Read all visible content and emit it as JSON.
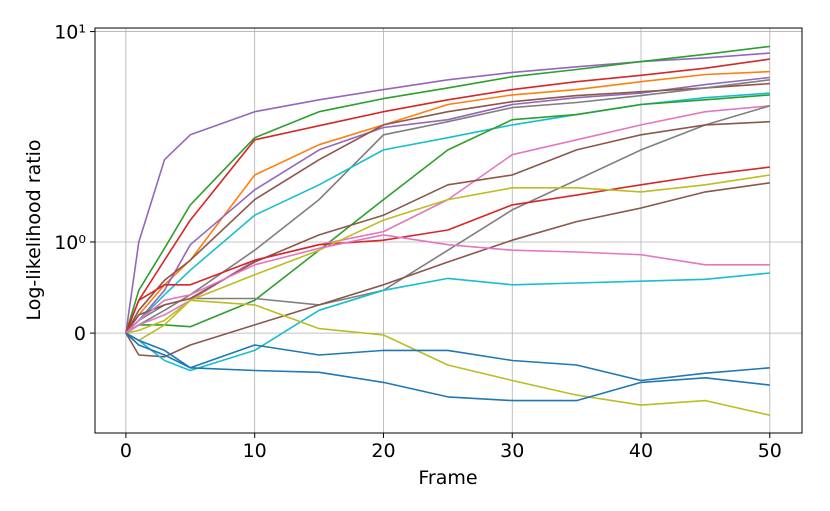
{
  "chart_data": {
    "type": "line",
    "x_label": "Frame",
    "y_label": "Log-likelihood ratio",
    "xlim": [
      -2.4,
      52.5
    ],
    "xticks": [
      0,
      10,
      20,
      30,
      40,
      50
    ],
    "ylim": [
      -1.1,
      10.4
    ],
    "yscale": "symlog",
    "linthresh": 1,
    "yticks": [
      0,
      {
        "value": 1,
        "label": "10⁰"
      },
      {
        "value": 10,
        "label": "10¹"
      }
    ],
    "grid": true,
    "x": [
      0,
      1,
      3,
      5,
      10,
      15,
      20,
      25,
      30,
      35,
      40,
      45,
      50
    ],
    "series": [
      {
        "color": "#9467bd",
        "values": [
          0,
          1.0,
          2.46,
          3.23,
          4.16,
          4.74,
          5.3,
          5.9,
          6.4,
          6.8,
          7.2,
          7.5,
          7.9
        ]
      },
      {
        "color": "#2ca02c",
        "values": [
          0,
          0.47,
          0.93,
          1.5,
          3.13,
          4.16,
          4.8,
          5.4,
          6.1,
          6.6,
          7.2,
          7.8,
          8.5
        ]
      },
      {
        "color": "#d62728",
        "values": [
          0,
          0.36,
          0.8,
          1.27,
          3.06,
          3.57,
          4.16,
          4.74,
          5.3,
          5.78,
          6.2,
          6.7,
          7.4
        ]
      },
      {
        "color": "#ff7f0e",
        "values": [
          0,
          0.2,
          0.53,
          0.8,
          2.08,
          2.9,
          3.6,
          4.5,
          5.0,
          5.3,
          5.78,
          6.25,
          6.45
        ]
      },
      {
        "color": "#9467bd",
        "values": [
          0,
          0.14,
          0.47,
          0.97,
          1.77,
          2.74,
          3.5,
          3.81,
          4.5,
          4.85,
          5.1,
          5.6,
          6.05
        ]
      },
      {
        "color": "#8c564b",
        "values": [
          0,
          0.25,
          0.58,
          0.8,
          1.59,
          2.46,
          3.6,
          4.16,
          4.64,
          4.96,
          5.18,
          5.4,
          5.66
        ]
      },
      {
        "color": "#7f7f7f",
        "values": [
          0,
          0.09,
          0.25,
          0.42,
          0.91,
          1.59,
          3.23,
          3.73,
          4.35,
          4.6,
          4.96,
          5.4,
          5.9
        ]
      },
      {
        "color": "#17becf",
        "values": [
          0,
          0.14,
          0.42,
          0.69,
          1.34,
          1.87,
          2.74,
          3.13,
          3.6,
          4.03,
          4.5,
          4.85,
          5.1
        ]
      },
      {
        "color": "#2ca02c",
        "values": [
          0,
          0.09,
          0.09,
          0.07,
          0.36,
          0.91,
          1.59,
          2.74,
          3.81,
          4.03,
          4.5,
          4.74,
          5.0
        ]
      },
      {
        "color": "#e377c2",
        "values": [
          0,
          0.09,
          0.2,
          0.36,
          0.8,
          0.97,
          1.12,
          1.59,
          2.6,
          3.06,
          3.6,
          4.16,
          4.44
        ]
      },
      {
        "color": "#7f7f7f",
        "values": [
          0,
          0.14,
          0.31,
          0.38,
          0.38,
          0.31,
          0.47,
          0.91,
          1.42,
          1.97,
          2.74,
          3.6,
          4.44
        ]
      },
      {
        "color": "#8c564b",
        "values": [
          0,
          0.2,
          0.31,
          0.38,
          0.78,
          1.08,
          1.34,
          1.87,
          2.08,
          2.74,
          3.23,
          3.6,
          3.73
        ]
      },
      {
        "color": "#d62728",
        "values": [
          0,
          0.36,
          0.53,
          0.53,
          0.8,
          0.97,
          1.02,
          1.14,
          1.5,
          1.67,
          1.87,
          2.08,
          2.27
        ]
      },
      {
        "color": "#bcbd22",
        "values": [
          0,
          0.03,
          0.14,
          0.36,
          0.64,
          0.91,
          1.27,
          1.59,
          1.81,
          1.81,
          1.73,
          1.87,
          2.08
        ]
      },
      {
        "color": "#8c564b",
        "values": [
          0,
          -0.24,
          -0.26,
          -0.13,
          0.09,
          0.31,
          0.53,
          0.78,
          1.02,
          1.25,
          1.45,
          1.73,
          1.91
        ]
      },
      {
        "color": "#e377c2",
        "values": [
          0,
          0.14,
          0.36,
          0.42,
          0.75,
          0.93,
          1.08,
          0.97,
          0.91,
          0.89,
          0.86,
          0.75,
          0.75
        ]
      },
      {
        "color": "#17becf",
        "values": [
          0,
          -0.08,
          -0.3,
          -0.41,
          -0.19,
          0.25,
          0.47,
          0.6,
          0.53,
          0.55,
          0.57,
          0.59,
          0.66
        ]
      },
      {
        "color": "#bcbd22",
        "values": [
          0,
          -0.08,
          0.09,
          0.36,
          0.31,
          0.05,
          -0.02,
          -0.35,
          -0.52,
          -0.68,
          -0.79,
          -0.74,
          -0.9
        ]
      },
      {
        "color": "#1f77b4",
        "values": [
          0,
          -0.08,
          -0.19,
          -0.38,
          -0.13,
          -0.24,
          -0.19,
          -0.19,
          -0.3,
          -0.35,
          -0.52,
          -0.44,
          -0.38
        ]
      },
      {
        "color": "#1f77b4",
        "values": [
          0,
          -0.13,
          -0.24,
          -0.38,
          -0.41,
          -0.43,
          -0.54,
          -0.7,
          -0.74,
          -0.74,
          -0.54,
          -0.49,
          -0.57
        ]
      }
    ]
  }
}
